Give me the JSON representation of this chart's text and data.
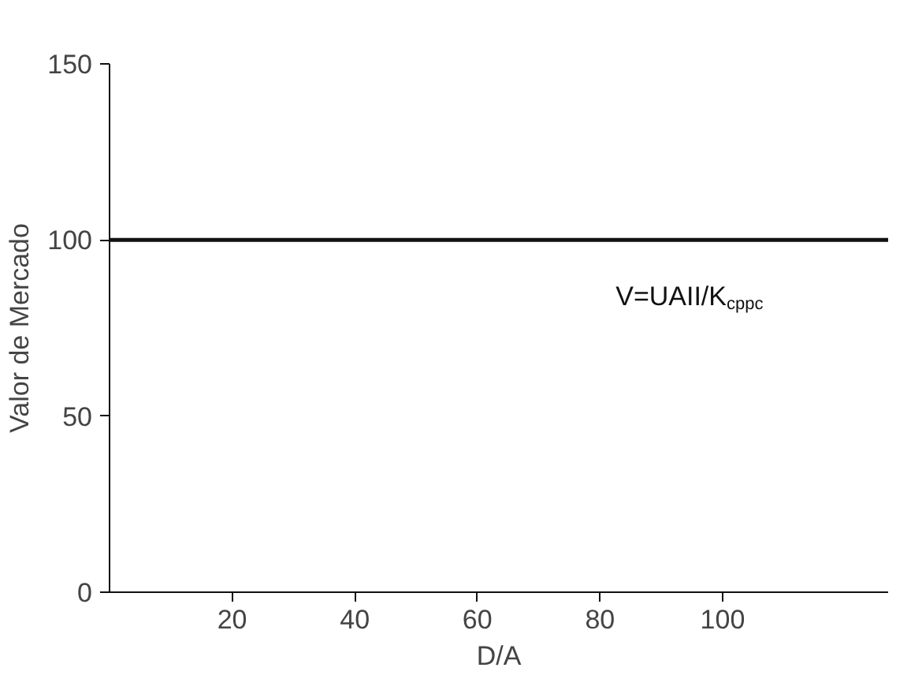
{
  "chart_data": {
    "type": "line",
    "xlabel": "D/A",
    "ylabel": "Valor de Mercado",
    "x": [
      0,
      127
    ],
    "series": [
      {
        "color": "#111111",
        "values": [
          100,
          100
        ]
      }
    ],
    "xlim": [
      0,
      127
    ],
    "ylim": [
      0,
      150
    ],
    "xticks": [
      20,
      40,
      60,
      80,
      100
    ],
    "yticks": [
      0,
      50,
      100,
      150
    ],
    "annotations": [
      "V=UAII/K$_{cppc}$"
    ],
    "grid": false,
    "marker": "none",
    "line_style": "solid"
  }
}
